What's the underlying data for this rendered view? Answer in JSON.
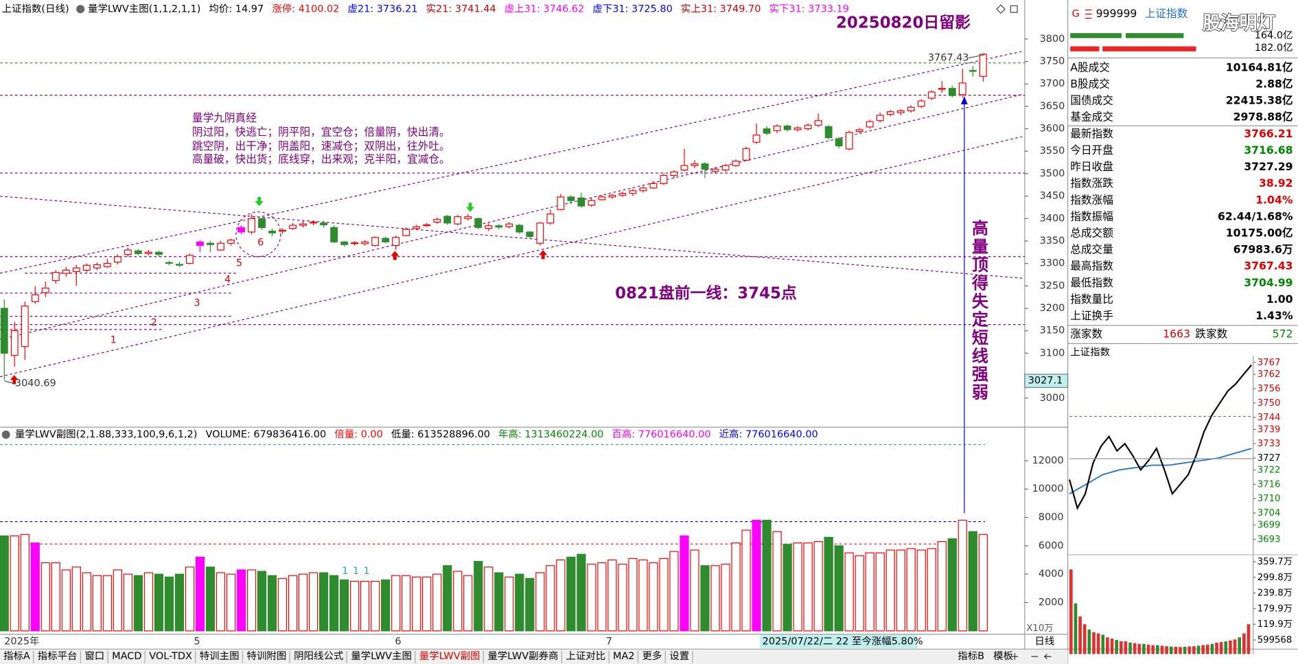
{
  "header": {
    "symbol": "上证指数(日线)",
    "indicator": "量学LWV主图(1,1,2,1,1)",
    "items": [
      {
        "text": "均价: 14.97",
        "color": "#000000"
      },
      {
        "text": "涨停: 4100.02",
        "color": "#ff0000"
      },
      {
        "text": "虚21: 3736.21",
        "color": "#0000ff"
      },
      {
        "text": "实21: 3741.44",
        "color": "#cc0000"
      },
      {
        "text": "虚上31: 3746.62",
        "color": "#ff00ff"
      },
      {
        "text": "虚下31: 3725.80",
        "color": "#0000ff"
      },
      {
        "text": "实上31: 3749.70",
        "color": "#cc0000"
      },
      {
        "text": "实下31: 3733.19",
        "color": "#ff00ff"
      }
    ]
  },
  "price_chart": {
    "title": "20250820日留影",
    "notes": [
      "量学九阴真经",
      "阴过阳，快逃亡；阴平阳，宜空仓；倍量阴，快出清。",
      "跳空阴，出干净；阴盖阳，速减仓；双阴出，往外吐。",
      "高量破，快出货；底线穿，出来观；克半阳，宜减仓。"
    ],
    "forecast": "0821盘前一线：3745点",
    "vertical_note": "高量顶得失定短线强弱",
    "wave_labels": [
      "1",
      "2",
      "3",
      "4",
      "5",
      "6"
    ],
    "high_label": "3767.43",
    "low_label": "3040.69",
    "cursor_label": "3027.1",
    "ylim": [
      2937,
      3850
    ],
    "yticks": [
      3800,
      3750,
      3700,
      3650,
      3600,
      3550,
      3500,
      3450,
      3400,
      3350,
      3300,
      3250,
      3200,
      3150,
      3100,
      3000
    ],
    "up_color": "#ff0000",
    "down_color": "#2e8b2e",
    "highlight_color": "#ff00ff",
    "highlight": [
      19,
      23
    ],
    "candles": [
      [
        3200,
        3220,
        3041,
        3100
      ],
      [
        3095,
        3170,
        3070,
        3150
      ],
      [
        3115,
        3215,
        3085,
        3205
      ],
      [
        3215,
        3250,
        3210,
        3230
      ],
      [
        3235,
        3260,
        3225,
        3245
      ],
      [
        3262,
        3285,
        3255,
        3280
      ],
      [
        3278,
        3292,
        3270,
        3285
      ],
      [
        3282,
        3297,
        3250,
        3290
      ],
      [
        3285,
        3300,
        3280,
        3296
      ],
      [
        3290,
        3302,
        3285,
        3297
      ],
      [
        3293,
        3310,
        3290,
        3300
      ],
      [
        3303,
        3320,
        3298,
        3315
      ],
      [
        3320,
        3335,
        3315,
        3330
      ],
      [
        3328,
        3332,
        3318,
        3322
      ],
      [
        3322,
        3330,
        3318,
        3325
      ],
      [
        3325,
        3328,
        3315,
        3320
      ],
      [
        3302,
        3306,
        3296,
        3300
      ],
      [
        3298,
        3304,
        3292,
        3296
      ],
      [
        3300,
        3322,
        3298,
        3318
      ],
      [
        3340,
        3352,
        3325,
        3348
      ],
      [
        3345,
        3350,
        3325,
        3342
      ],
      [
        3330,
        3350,
        3328,
        3345
      ],
      [
        3345,
        3355,
        3340,
        3352
      ],
      [
        3370,
        3385,
        3365,
        3380
      ],
      [
        3370,
        3410,
        3365,
        3400
      ],
      [
        3400,
        3402,
        3375,
        3380
      ],
      [
        3372,
        3378,
        3360,
        3368
      ],
      [
        3372,
        3378,
        3366,
        3374
      ],
      [
        3378,
        3390,
        3375,
        3385
      ],
      [
        3385,
        3395,
        3380,
        3388
      ],
      [
        3390,
        3396,
        3385,
        3392
      ],
      [
        3390,
        3395,
        3380,
        3386
      ],
      [
        3380,
        3385,
        3345,
        3348
      ],
      [
        3348,
        3350,
        3338,
        3342
      ],
      [
        3345,
        3350,
        3340,
        3346
      ],
      [
        3344,
        3352,
        3340,
        3348
      ],
      [
        3340,
        3360,
        3338,
        3358
      ],
      [
        3356,
        3360,
        3345,
        3348
      ],
      [
        3340,
        3362,
        3330,
        3358
      ],
      [
        3362,
        3380,
        3360,
        3376
      ],
      [
        3378,
        3386,
        3374,
        3382
      ],
      [
        3384,
        3390,
        3382,
        3386
      ],
      [
        3392,
        3402,
        3388,
        3398
      ],
      [
        3405,
        3408,
        3386,
        3390
      ],
      [
        3388,
        3408,
        3385,
        3404
      ],
      [
        3400,
        3410,
        3396,
        3404
      ],
      [
        3400,
        3402,
        3376,
        3380
      ],
      [
        3378,
        3390,
        3372,
        3384
      ],
      [
        3384,
        3388,
        3376,
        3381
      ],
      [
        3382,
        3392,
        3378,
        3388
      ],
      [
        3385,
        3388,
        3366,
        3370
      ],
      [
        3370,
        3372,
        3356,
        3360
      ],
      [
        3345,
        3392,
        3340,
        3390
      ],
      [
        3390,
        3420,
        3386,
        3410
      ],
      [
        3420,
        3455,
        3418,
        3448
      ],
      [
        3448,
        3452,
        3432,
        3440
      ],
      [
        3446,
        3458,
        3424,
        3428
      ],
      [
        3430,
        3446,
        3426,
        3440
      ],
      [
        3442,
        3452,
        3440,
        3448
      ],
      [
        3448,
        3455,
        3444,
        3452
      ],
      [
        3452,
        3460,
        3448,
        3456
      ],
      [
        3456,
        3466,
        3450,
        3462
      ],
      [
        3462,
        3472,
        3458,
        3468
      ],
      [
        3468,
        3484,
        3466,
        3478
      ],
      [
        3478,
        3500,
        3475,
        3496
      ],
      [
        3496,
        3508,
        3490,
        3504
      ],
      [
        3508,
        3555,
        3505,
        3518
      ],
      [
        3518,
        3530,
        3512,
        3522
      ],
      [
        3522,
        3526,
        3490,
        3510
      ],
      [
        3505,
        3515,
        3500,
        3510
      ],
      [
        3508,
        3522,
        3504,
        3518
      ],
      [
        3518,
        3532,
        3515,
        3528
      ],
      [
        3530,
        3560,
        3528,
        3556
      ],
      [
        3570,
        3612,
        3566,
        3586
      ],
      [
        3600,
        3606,
        3586,
        3590
      ],
      [
        3596,
        3610,
        3590,
        3606
      ],
      [
        3606,
        3610,
        3594,
        3598
      ],
      [
        3598,
        3606,
        3594,
        3602
      ],
      [
        3600,
        3612,
        3596,
        3608
      ],
      [
        3608,
        3634,
        3604,
        3618
      ],
      [
        3605,
        3608,
        3576,
        3580
      ],
      [
        3578,
        3582,
        3556,
        3562
      ],
      [
        3555,
        3596,
        3552,
        3592
      ],
      [
        3594,
        3602,
        3590,
        3598
      ],
      [
        3604,
        3620,
        3600,
        3616
      ],
      [
        3618,
        3636,
        3614,
        3630
      ],
      [
        3632,
        3642,
        3628,
        3638
      ],
      [
        3636,
        3644,
        3630,
        3640
      ],
      [
        3640,
        3652,
        3636,
        3648
      ],
      [
        3650,
        3666,
        3646,
        3662
      ],
      [
        3668,
        3686,
        3664,
        3682
      ],
      [
        3688,
        3706,
        3680,
        3690
      ],
      [
        3690,
        3696,
        3670,
        3674
      ],
      [
        3676,
        3734,
        3670,
        3702
      ],
      [
        3730,
        3740,
        3716,
        3728
      ],
      [
        3716.68,
        3767.43,
        3704.99,
        3766.21
      ]
    ]
  },
  "volume_chart": {
    "title": "量学LWV副图(2,1.88,333,100,9,6,1,2)",
    "items": [
      {
        "text": "VOLUME: 679836416.00",
        "color": "#000000"
      },
      {
        "text": "倍量: 0.00",
        "color": "#ff0000"
      },
      {
        "text": "低量: 613528896.00",
        "color": "#000000"
      },
      {
        "text": "年高: 1313460224.00",
        "color": "#008800"
      },
      {
        "text": "百高: 776016640.00",
        "color": "#ff00ff"
      },
      {
        "text": "近高: 776016640.00",
        "color": "#0000ff"
      }
    ],
    "unit": "X10万",
    "markers": [
      "1",
      "1",
      "1"
    ],
    "ylim": [
      0,
      14300
    ],
    "yticks": [
      12000,
      10000,
      8000,
      6000,
      4000,
      2000
    ],
    "highlight": [
      3,
      19,
      23,
      66,
      73
    ],
    "values": [
      6700,
      6700,
      6800,
      6200,
      4800,
      4800,
      4300,
      4500,
      4100,
      3900,
      3900,
      4300,
      4000,
      3900,
      4100,
      4000,
      3800,
      4000,
      4500,
      5200,
      4500,
      4100,
      4000,
      4300,
      4300,
      4200,
      3900,
      3700,
      3900,
      4000,
      4100,
      4100,
      3900,
      3600,
      3500,
      3500,
      3500,
      3600,
      3900,
      3900,
      3800,
      3800,
      4000,
      4600,
      4200,
      3900,
      4900,
      4500,
      4100,
      3800,
      4000,
      3700,
      4100,
      4600,
      5000,
      5200,
      5400,
      4700,
      4800,
      5000,
      4700,
      5100,
      5000,
      4800,
      5100,
      5600,
      6700,
      5700,
      4600,
      4600,
      4700,
      6200,
      7100,
      7800,
      7800,
      7000,
      6100,
      6200,
      6200,
      6300,
      6600,
      6000,
      5500,
      5300,
      5500,
      5500,
      5700,
      5700,
      5800,
      5700,
      5800,
      6300,
      6500,
      7800,
      7000,
      6798
    ]
  },
  "x_axis": {
    "labels": [
      "2025年",
      "5",
      "6",
      "7"
    ],
    "cursor": "2025/07/22/二 22 至今涨幅5.80%",
    "period": "日线"
  },
  "tabs": [
    "指标A",
    "指标平台",
    "窗口",
    "MACD",
    "VOL-TDX",
    "特训主图",
    "特训附图",
    "阴阳线公式",
    "量学LWV主图",
    "量学LWV副图",
    "量学LWV副券商",
    "上证对比",
    "MA2",
    "更多",
    "设置"
  ],
  "active_tab": 9,
  "tabs_right": [
    "指标B",
    "模板"
  ],
  "quote": {
    "badge": "G",
    "code": "999999",
    "name": "上证指数",
    "watermark": "股海明灯",
    "bar_labels": [
      "164.0亿",
      "182.0亿"
    ],
    "rows": [
      {
        "label": "A股成交",
        "value": "10164.81亿",
        "color": "#000000"
      },
      {
        "label": "B股成交",
        "value": "2.88亿",
        "color": "#000000"
      },
      {
        "label": "国债成交",
        "value": "22415.38亿",
        "color": "#000000"
      },
      {
        "label": "基金成交",
        "value": "2978.88亿",
        "color": "#000000"
      },
      {
        "label": "最新指数",
        "value": "3766.21",
        "color": "#e00000"
      },
      {
        "label": "今日开盘",
        "value": "3716.68",
        "color": "#008800"
      },
      {
        "label": "昨日收盘",
        "value": "3727.29",
        "color": "#000000"
      },
      {
        "label": "指数涨跌",
        "value": "38.92",
        "color": "#e00000"
      },
      {
        "label": "指数涨幅",
        "value": "1.04%",
        "color": "#e00000"
      },
      {
        "label": "指数振幅",
        "value": "62.44/1.68%",
        "color": "#000000"
      },
      {
        "label": "总成交额",
        "value": "10175.00亿",
        "color": "#000000"
      },
      {
        "label": "总成交量",
        "value": "67983.6万",
        "color": "#000000"
      },
      {
        "label": "最高指数",
        "value": "3767.43",
        "color": "#e00000"
      },
      {
        "label": "最低指数",
        "value": "3704.99",
        "color": "#008800"
      },
      {
        "label": "指数量比",
        "value": "1.00",
        "color": "#000000"
      },
      {
        "label": "上证换手",
        "value": "1.43%",
        "color": "#000000"
      }
    ],
    "breadth": {
      "up_label": "涨家数",
      "up": "1663",
      "down_label": "跌家数",
      "down": "572"
    }
  },
  "intraday": {
    "title": "上证指数",
    "prev_close": 3727.29,
    "ylim": [
      3690,
      3769
    ],
    "yticks": [
      3767,
      3762,
      3756,
      3750,
      3744,
      3739,
      3733,
      3727,
      3722,
      3716,
      3710,
      3704,
      3699,
      3693
    ],
    "price": [
      3718,
      3706,
      3712,
      3725,
      3732,
      3736,
      3730,
      3733,
      3728,
      3722,
      3726,
      3731,
      3722,
      3712,
      3716,
      3720,
      3728,
      3738,
      3745,
      3750,
      3755,
      3758,
      3762,
      3766
    ],
    "avg": [
      3712,
      3716,
      3720,
      3722,
      3723,
      3724,
      3724,
      3725,
      3726,
      3727,
      3729,
      3731
    ],
    "vol_ylim": [
      6,
      380
    ],
    "vol_ticks": [
      {
        "value": 359.7,
        "label": "359.7万"
      },
      {
        "value": 299.8,
        "label": "299.8万"
      },
      {
        "value": 239.8,
        "label": "239.8万"
      },
      {
        "value": 179.9,
        "label": "179.9万"
      },
      {
        "value": 119.9,
        "label": "119.9万"
      },
      {
        "value": 59.9568,
        "label": "599568"
      }
    ],
    "volume": [
      330,
      200,
      150,
      120,
      100,
      90,
      85,
      80,
      70,
      65,
      60,
      55,
      55,
      50,
      48,
      45,
      45,
      42,
      40,
      40,
      38,
      36,
      35,
      34,
      33,
      34,
      35,
      36,
      38,
      40,
      42,
      45,
      50,
      52,
      55,
      58,
      62,
      70,
      85,
      120
    ]
  }
}
